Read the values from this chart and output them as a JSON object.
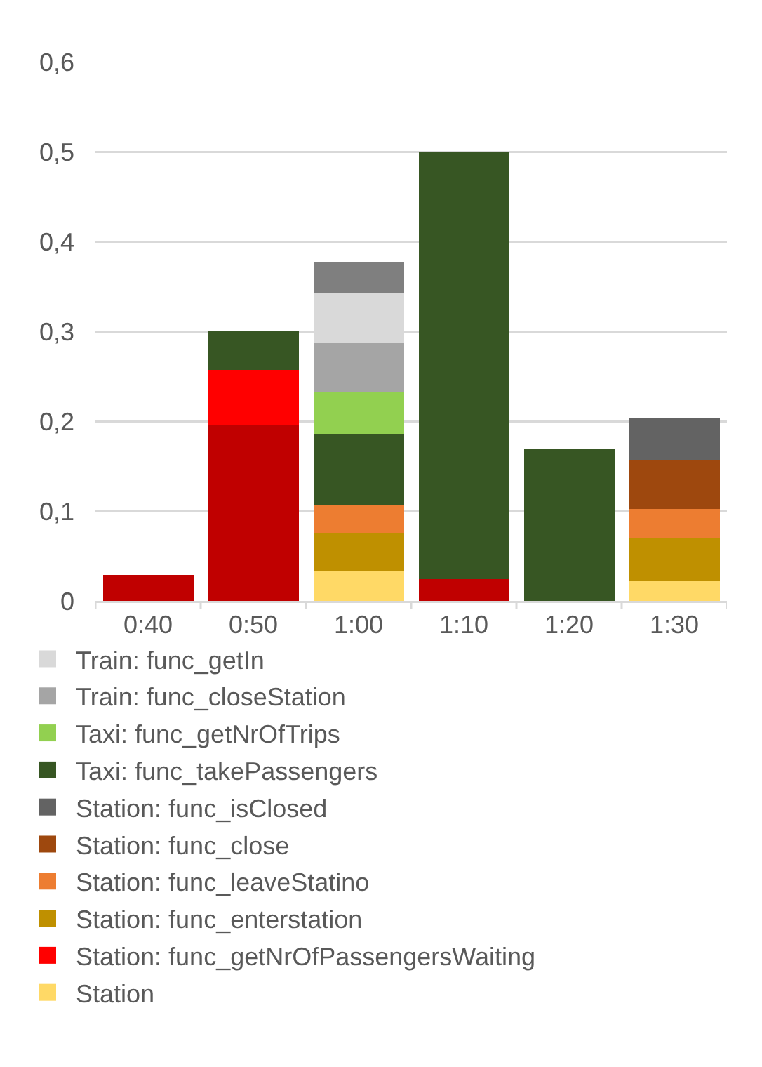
{
  "chart_data": {
    "type": "bar",
    "stacked": true,
    "categories": [
      "0:40",
      "0:50",
      "1:00",
      "1:10",
      "1:20",
      "1:30"
    ],
    "ylim": [
      0,
      0.6
    ],
    "yticks": [
      {
        "value": 0,
        "label": "0"
      },
      {
        "value": 0.1,
        "label": "0,1"
      },
      {
        "value": 0.2,
        "label": "0,2"
      },
      {
        "value": 0.3,
        "label": "0,3"
      },
      {
        "value": 0.4,
        "label": "0,4"
      },
      {
        "value": 0.5,
        "label": "0,5"
      },
      {
        "value": 0.6,
        "label": "0,6"
      }
    ],
    "grid": "y",
    "legend": "bottom",
    "series": [
      {
        "name": "Station",
        "color": "#ffd966",
        "values": [
          null,
          null,
          0.033,
          null,
          null,
          0.023
        ]
      },
      {
        "color": "#c00000",
        "values": [
          0.029,
          0.196,
          null,
          0.024,
          null,
          null
        ]
      },
      {
        "name": "Station: func_getNrOfPassengersWaiting",
        "color": "#ff0000",
        "values": [
          null,
          0.061,
          null,
          null,
          null,
          null
        ]
      },
      {
        "name": "Station: func_enterstation",
        "color": "#bf9000",
        "values": [
          null,
          null,
          0.042,
          null,
          null,
          0.047
        ]
      },
      {
        "name": "Station: func_leaveStatino",
        "color": "#ed7d31",
        "values": [
          null,
          null,
          0.032,
          null,
          null,
          0.032
        ]
      },
      {
        "name": "Station: func_close",
        "color": "#9e480e",
        "values": [
          null,
          null,
          null,
          null,
          null,
          0.054
        ]
      },
      {
        "name": "Station: func_isClosed",
        "color": "#636363",
        "values": [
          null,
          null,
          null,
          null,
          null,
          0.047
        ]
      },
      {
        "name": "Taxi: func_takePassengers",
        "color": "#375623",
        "values": [
          null,
          0.044,
          0.079,
          0.476,
          0.169,
          null
        ]
      },
      {
        "name": "Taxi: func_getNrOfTrips",
        "color": "#92d050",
        "values": [
          null,
          null,
          0.046,
          null,
          null,
          null
        ]
      },
      {
        "name": "Train: func_closeStation",
        "color": "#a5a5a5",
        "values": [
          null,
          null,
          0.055,
          null,
          null,
          null
        ]
      },
      {
        "name": "Train: func_getIn",
        "color": "#d9d9d9",
        "values": [
          null,
          null,
          0.055,
          null,
          null,
          null
        ]
      },
      {
        "color": "#7f7f7f",
        "values": [
          null,
          null,
          0.035,
          null,
          null,
          null
        ]
      }
    ]
  }
}
